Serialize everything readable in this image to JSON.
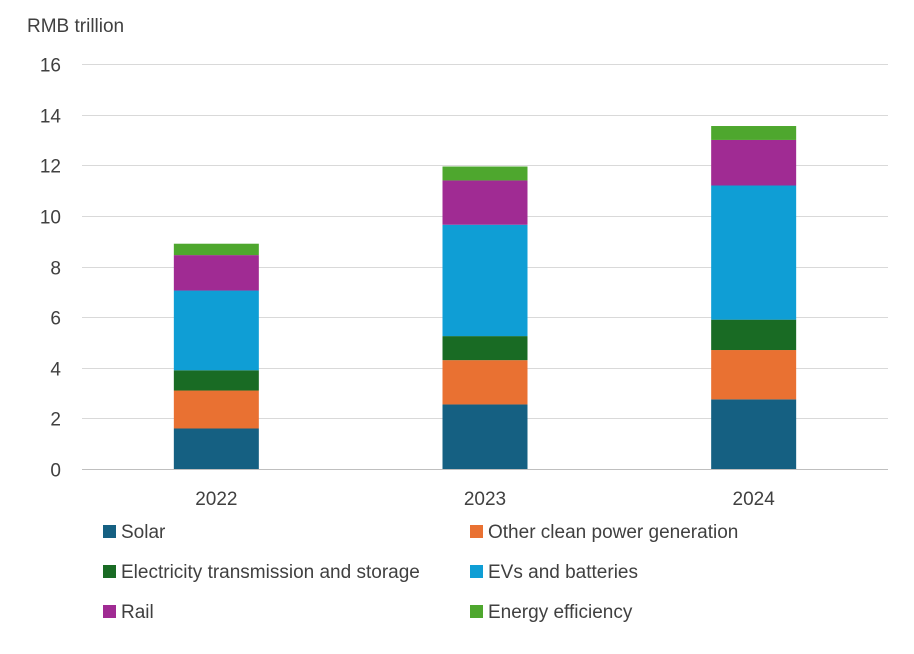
{
  "chart_data": {
    "type": "bar",
    "stacked": true,
    "unit_label": "RMB trillion",
    "categories": [
      "2022",
      "2023",
      "2024"
    ],
    "ylim": [
      0,
      16
    ],
    "yticks": [
      "0",
      "2",
      "4",
      "6",
      "8",
      "10",
      "12",
      "14",
      "16"
    ],
    "grid": true,
    "legend_position": "bottom",
    "series": [
      {
        "name": "Solar",
        "color": "#156082",
        "values": [
          1.6,
          2.55,
          2.75
        ]
      },
      {
        "name": "Other clean power generation",
        "color": "#E97132",
        "values": [
          1.5,
          1.75,
          1.95
        ]
      },
      {
        "name": "Electricity transmission and storage",
        "color": "#196B24",
        "values": [
          0.8,
          0.95,
          1.2
        ]
      },
      {
        "name": "EVs and batteries",
        "color": "#0F9ED5",
        "values": [
          3.15,
          4.4,
          5.3
        ]
      },
      {
        "name": "Rail",
        "color": "#A02B93",
        "values": [
          1.4,
          1.75,
          1.8
        ]
      },
      {
        "name": "Energy efficiency",
        "color": "#4EA72E",
        "values": [
          0.45,
          0.55,
          0.55
        ]
      }
    ]
  }
}
